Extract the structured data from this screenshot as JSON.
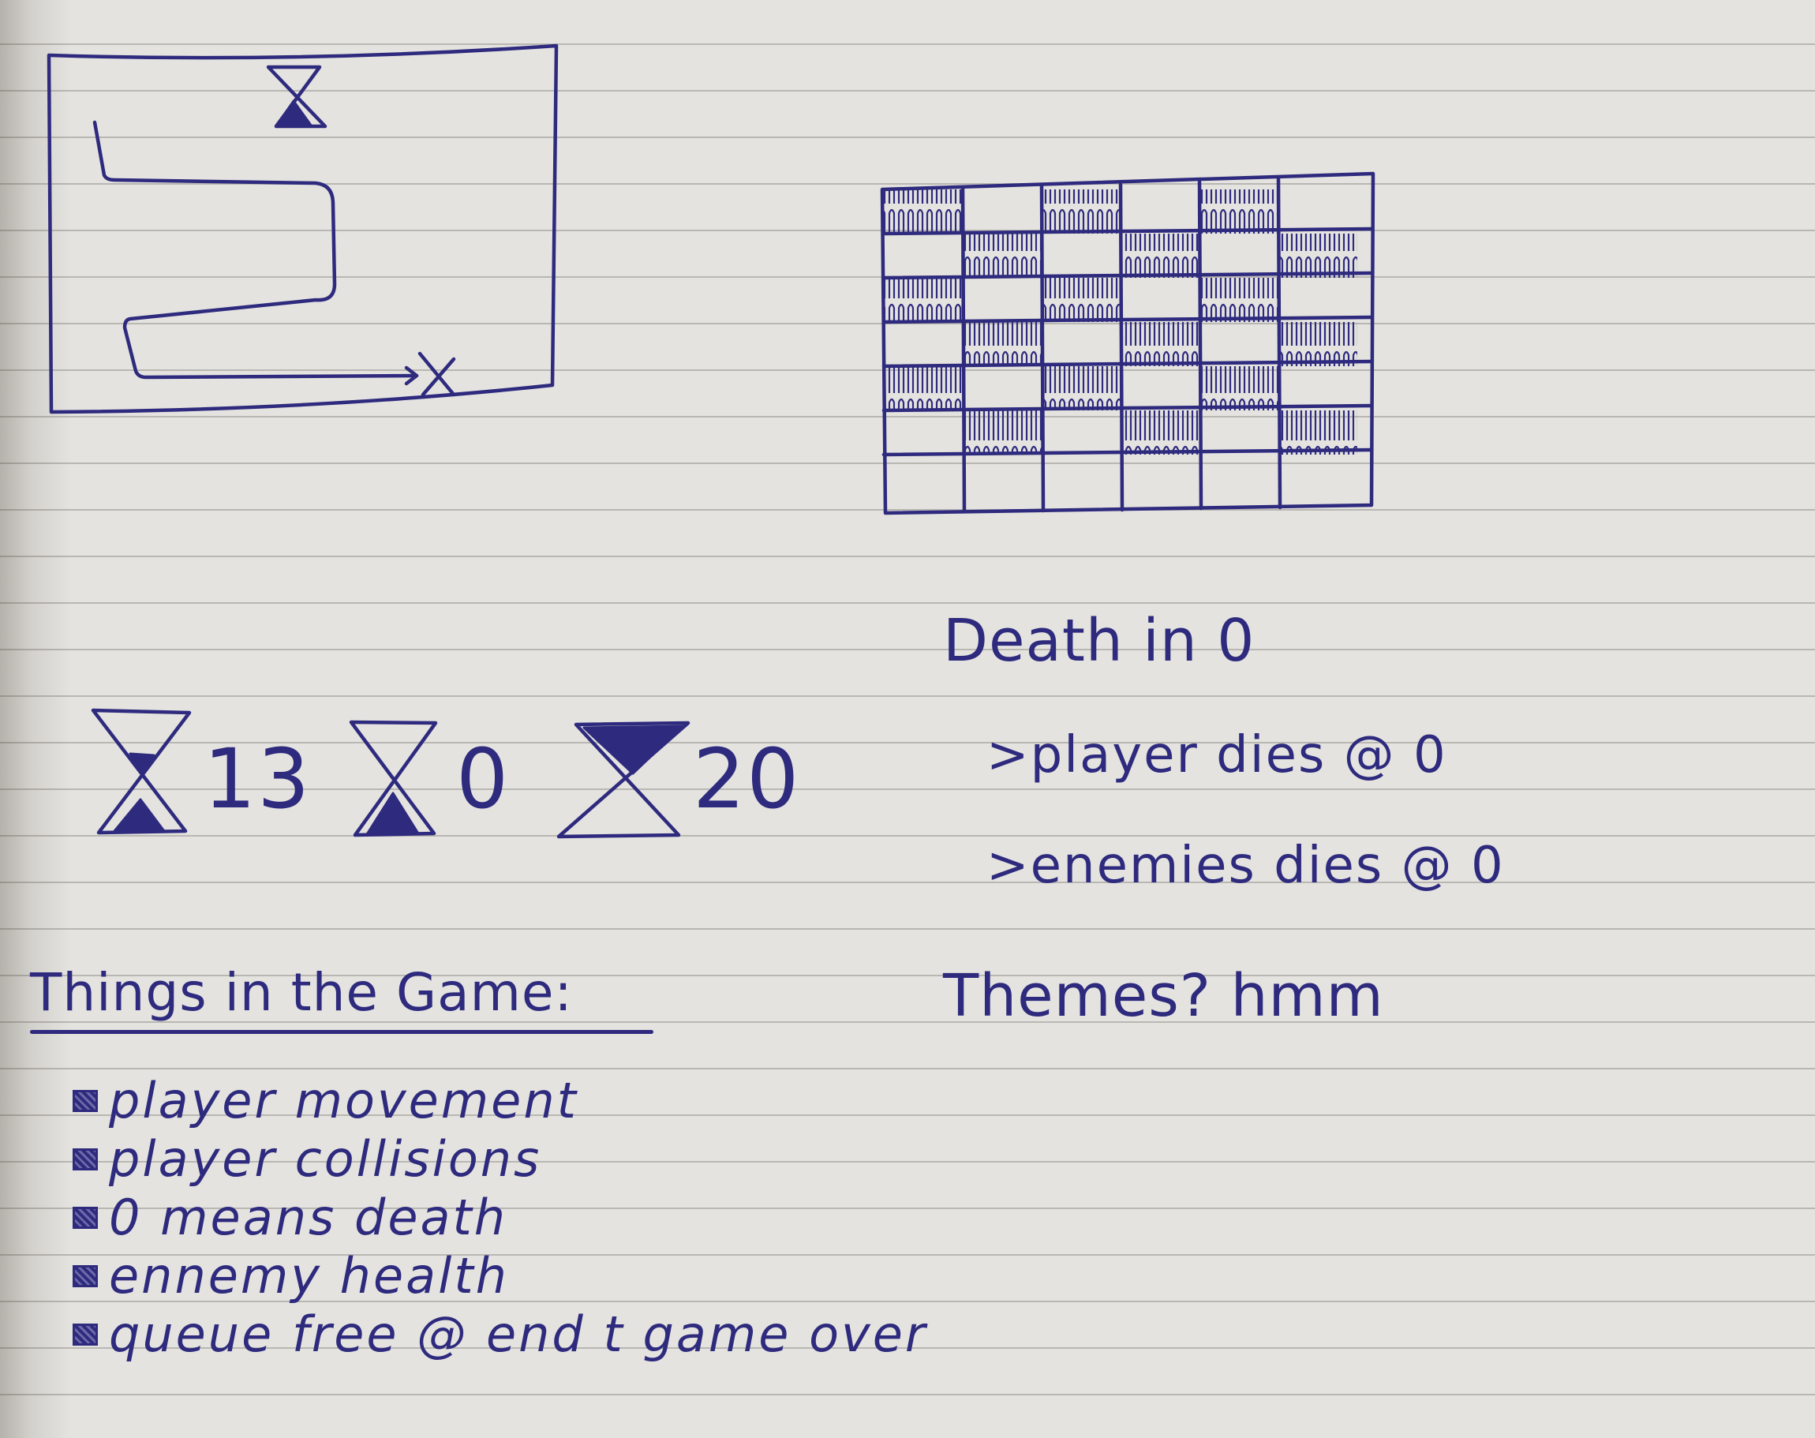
{
  "timers": [
    {
      "value": "13",
      "icon": "hourglass-half-icon"
    },
    {
      "value": "0",
      "icon": "hourglass-empty-icon"
    },
    {
      "value": "20",
      "icon": "hourglass-full-icon"
    }
  ],
  "death_notes": {
    "heading": "Death in 0",
    "lines": [
      ">player dies @ 0",
      ">enemies dies @ 0"
    ]
  },
  "themes": "Themes? hmm",
  "things": {
    "title": "Things in the Game:",
    "items": [
      "player movement",
      "player collisions",
      "0 means death",
      "ennemy health",
      "queue free @ end t game over"
    ]
  },
  "colors": {
    "ink": "#2e2a7e",
    "paper": "#e4e3df",
    "rule_line": "#b9b7b2"
  }
}
